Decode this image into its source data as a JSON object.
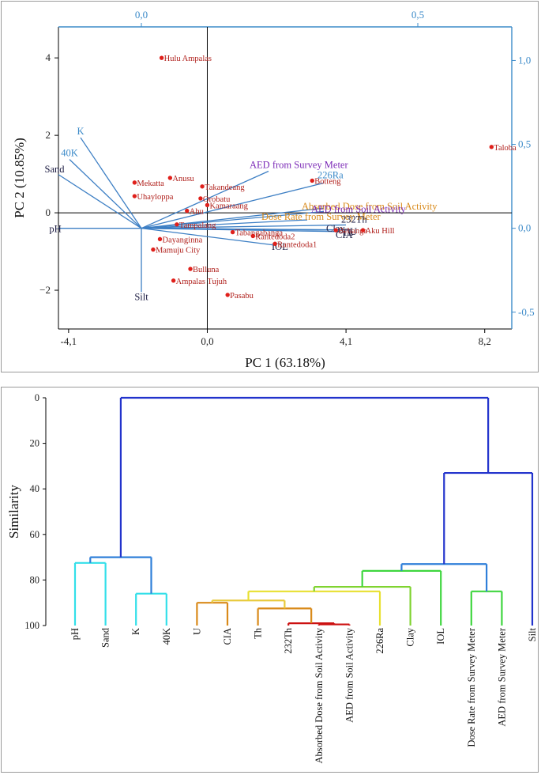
{
  "colors": {
    "axis": "#000000",
    "top_axis": "#3d8bc9",
    "point": "#e0201b",
    "label_text": "#b0201c",
    "arrow": "#3d7fc4",
    "pc_blue_label": "#3d8bc9",
    "purple_label": "#7a27b6",
    "orange_label": "#d98a1a",
    "dark_label": "#1a1a40"
  },
  "chart_data": [
    {
      "type": "scatter",
      "subtype": "pca_biplot",
      "xlabel": "PC 1 (63.18%)",
      "ylabel": "PC 2 (10.85%)",
      "xlim": [
        -4.4,
        9.0
      ],
      "ylim": [
        -3.0,
        4.8
      ],
      "xticks": [
        {
          "v": -4.1,
          "label": "-4,1"
        },
        {
          "v": 0.0,
          "label": "0,0"
        },
        {
          "v": 4.1,
          "label": "4,1"
        },
        {
          "v": 8.2,
          "label": "8,2"
        }
      ],
      "yticks": [
        {
          "v": -2,
          "label": "−2"
        },
        {
          "v": 0,
          "label": "0"
        },
        {
          "v": 2,
          "label": "2"
        },
        {
          "v": 4,
          "label": "4"
        }
      ],
      "loading_xlim": [
        -0.15,
        0.67
      ],
      "loading_ylim": [
        -0.6,
        1.2
      ],
      "top_ticks": [
        {
          "v": 0.0,
          "label": "0,0"
        },
        {
          "v": 0.5,
          "label": "0,5"
        }
      ],
      "right_ticks": [
        {
          "v": -0.5,
          "label": "-0,5"
        },
        {
          "v": 0.0,
          "label": "0,0"
        },
        {
          "v": 0.5,
          "label": "0,5"
        },
        {
          "v": 1.0,
          "label": "1,0"
        }
      ],
      "scores": [
        {
          "name": "Hulu Ampalas",
          "x": -1.35,
          "y": 4.0
        },
        {
          "name": "Taloba",
          "x": 8.4,
          "y": 1.7
        },
        {
          "name": "Anusu",
          "x": -1.1,
          "y": 0.9
        },
        {
          "name": "Mekatta",
          "x": -2.15,
          "y": 0.78
        },
        {
          "name": "Uhayloppa",
          "x": -2.15,
          "y": 0.43
        },
        {
          "name": "Takandeang",
          "x": -0.15,
          "y": 0.68
        },
        {
          "name": "Orobatu",
          "x": -0.2,
          "y": 0.37
        },
        {
          "name": "Kamaraang",
          "x": 0.0,
          "y": 0.2
        },
        {
          "name": "Ahu",
          "x": -0.6,
          "y": 0.05
        },
        {
          "name": "Tampalang",
          "x": -0.9,
          "y": -0.3
        },
        {
          "name": "Dayanginna",
          "x": -1.4,
          "y": -0.68
        },
        {
          "name": "Mamuju City",
          "x": -1.6,
          "y": -0.95
        },
        {
          "name": "Bulluna",
          "x": -0.5,
          "y": -1.45
        },
        {
          "name": "Ampalas Tujuh",
          "x": -1.0,
          "y": -1.75
        },
        {
          "name": "Pasabu",
          "x": 0.6,
          "y": -2.12
        },
        {
          "name": "Tabangabanga",
          "x": 0.75,
          "y": -0.5
        },
        {
          "name": "Rantedoda2",
          "x": 1.35,
          "y": -0.6
        },
        {
          "name": "Rantedoda1",
          "x": 2.0,
          "y": -0.8
        },
        {
          "name": "Botteng",
          "x": 3.1,
          "y": 0.83
        },
        {
          "name": "Bebanga",
          "x": 3.8,
          "y": -0.45
        },
        {
          "name": "Aku Hill",
          "x": 4.6,
          "y": -0.45
        }
      ],
      "loadings": [
        {
          "name": "K",
          "x": -0.11,
          "y": 0.54,
          "color": "pc_blue_label"
        },
        {
          "name": "40K",
          "x": -0.13,
          "y": 0.41,
          "color": "pc_blue_label"
        },
        {
          "name": "Sand",
          "x": -0.15,
          "y": 0.32,
          "color": "dark_label"
        },
        {
          "name": "pH",
          "x": -0.15,
          "y": 0.0,
          "color": "dark_label"
        },
        {
          "name": "AED from Survey Meter",
          "x": 0.23,
          "y": 0.34,
          "color": "purple_label"
        },
        {
          "name": "226Ra",
          "x": 0.33,
          "y": 0.27,
          "color": "pc_blue_label"
        },
        {
          "name": "Absorbed Dose from Soil Activity",
          "x": 0.33,
          "y": 0.12,
          "color": "orange_label"
        },
        {
          "name": "AED from Soil Activity",
          "x": 0.33,
          "y": 0.1,
          "color": "purple_label"
        },
        {
          "name": "Dose Rate from Survey Meter",
          "x": 0.3,
          "y": 0.05,
          "color": "orange_label"
        },
        {
          "name": "232Th",
          "x": 0.37,
          "y": 0.02,
          "color": "dark_label"
        },
        {
          "name": "Clay",
          "x": 0.34,
          "y": -0.01,
          "color": "dark_label"
        },
        {
          "name": "CIA",
          "x": 0.36,
          "y": -0.02,
          "color": "dark_label"
        },
        {
          "name": "U",
          "x": 0.38,
          "y": -0.01,
          "color": "dark_label"
        },
        {
          "name": "Th",
          "x": 0.36,
          "y": -0.01,
          "color": "dark_label"
        },
        {
          "name": "IOL",
          "x": 0.24,
          "y": -0.1,
          "color": "dark_label"
        },
        {
          "name": "Silt",
          "x": 0.0,
          "y": -0.38,
          "color": "dark_label"
        }
      ]
    },
    {
      "type": "dendrogram",
      "ylabel": "Similarity",
      "ylim": [
        0,
        100
      ],
      "yticks": [
        0,
        20,
        40,
        60,
        80,
        100
      ],
      "leaves": [
        "pH",
        "Sand",
        "K",
        "40K",
        "U",
        "CIA",
        "Th",
        "232Th",
        "Absorbed Dose from Soil Activity",
        "AED from Soil Activity",
        "226Ra",
        "Clay",
        "IOL",
        "Dose Rate from Survey Meter",
        "AED from Survey Meter",
        "Silt"
      ],
      "merges": [
        {
          "a": "L0",
          "b": "L1",
          "sim": 72.5,
          "color": "#33dfe9"
        },
        {
          "a": "L2",
          "b": "L3",
          "sim": 86,
          "color": "#33dfe9"
        },
        {
          "a": "M0",
          "b": "M1",
          "sim": 70,
          "color": "#2f7fd9"
        },
        {
          "a": "L4",
          "b": "L5",
          "sim": 90,
          "color": "#d98a1a"
        },
        {
          "a": "L8",
          "b": "L9",
          "sim": 99.5,
          "color": "#cc1111"
        },
        {
          "a": "L7",
          "b": "M4",
          "sim": 99,
          "color": "#cc1111"
        },
        {
          "a": "L6",
          "b": "M5",
          "sim": 92.5,
          "color": "#d98a1a"
        },
        {
          "a": "M3",
          "b": "M6",
          "sim": 89,
          "color": "#e8c93a"
        },
        {
          "a": "M7",
          "b": "L10",
          "sim": 85,
          "color": "#e8e030"
        },
        {
          "a": "M8",
          "b": "L11",
          "sim": 83,
          "color": "#7fd330"
        },
        {
          "a": "M9",
          "b": "L12",
          "sim": 76,
          "color": "#3fd63f"
        },
        {
          "a": "L13",
          "b": "L14",
          "sim": 85,
          "color": "#3fd63f"
        },
        {
          "a": "M10",
          "b": "M11",
          "sim": 73,
          "color": "#2f7fd9"
        },
        {
          "a": "M12",
          "b": "L15",
          "sim": 33,
          "color": "#2233cc"
        },
        {
          "a": "M2",
          "b": "M13",
          "sim": 0,
          "color": "#2233cc"
        }
      ]
    }
  ]
}
